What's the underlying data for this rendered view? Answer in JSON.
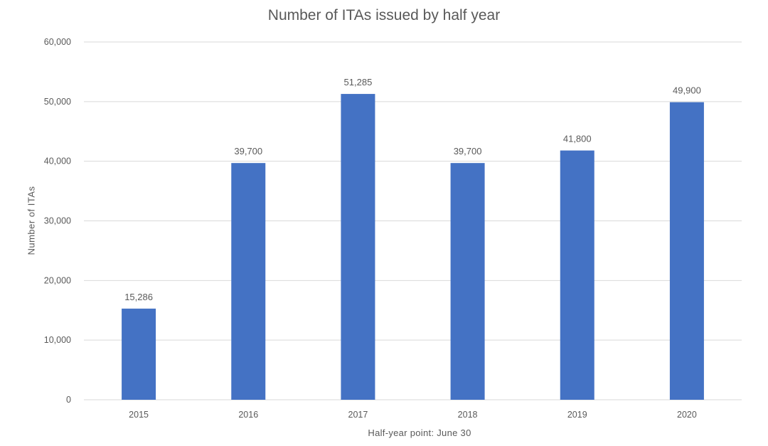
{
  "chart_data": {
    "type": "bar",
    "title": "Number of ITAs issued by half year",
    "xlabel": "Half-year point: June 30",
    "ylabel": "Number of ITAs",
    "categories": [
      "2015",
      "2016",
      "2017",
      "2018",
      "2019",
      "2020"
    ],
    "values": [
      15286,
      39700,
      51285,
      39700,
      41800,
      49900
    ],
    "value_labels": [
      "15,286",
      "39,700",
      "51,285",
      "39,700",
      "41,800",
      "49,900"
    ],
    "y_ticks": [
      0,
      10000,
      20000,
      30000,
      40000,
      50000,
      60000
    ],
    "y_tick_labels": [
      "0",
      "10,000",
      "20,000",
      "30,000",
      "40,000",
      "50,000",
      "60,000"
    ],
    "ylim": [
      0,
      60000
    ],
    "grid": true,
    "legend": "none",
    "bar_color": "#4472C4",
    "grid_color": "#D9D9D9",
    "text_color": "#595959"
  }
}
